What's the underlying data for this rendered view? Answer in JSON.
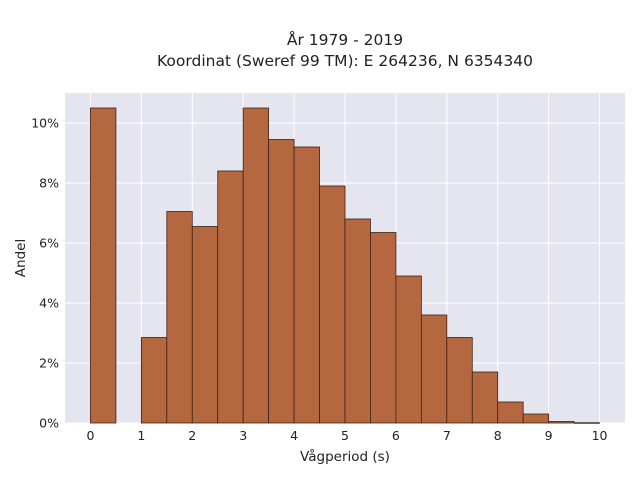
{
  "chart_data": {
    "type": "bar",
    "title": "År 1979 - 2019",
    "subtitle": "Koordinat (Sweref 99 TM): E 264236, N 6354340",
    "xlabel": "Vågperiod (s)",
    "ylabel": "Andel",
    "xlim": [
      -0.5,
      10.5
    ],
    "ylim": [
      0,
      11
    ],
    "x_ticks": [
      0,
      1,
      2,
      3,
      4,
      5,
      6,
      7,
      8,
      9,
      10
    ],
    "y_ticks": [
      0,
      2,
      4,
      6,
      8,
      10
    ],
    "y_tick_format": "percent",
    "bin_width": 0.5,
    "bins": [
      {
        "x": 0.0,
        "value": 10.5
      },
      {
        "x": 0.5,
        "value": 0.0
      },
      {
        "x": 1.0,
        "value": 2.85
      },
      {
        "x": 1.5,
        "value": 7.05
      },
      {
        "x": 2.0,
        "value": 6.55
      },
      {
        "x": 2.5,
        "value": 8.4
      },
      {
        "x": 3.0,
        "value": 10.5
      },
      {
        "x": 3.5,
        "value": 9.45
      },
      {
        "x": 4.0,
        "value": 9.2
      },
      {
        "x": 4.5,
        "value": 7.9
      },
      {
        "x": 5.0,
        "value": 6.8
      },
      {
        "x": 5.5,
        "value": 6.35
      },
      {
        "x": 6.0,
        "value": 4.9
      },
      {
        "x": 6.5,
        "value": 3.6
      },
      {
        "x": 7.0,
        "value": 2.85
      },
      {
        "x": 7.5,
        "value": 1.7
      },
      {
        "x": 8.0,
        "value": 0.7
      },
      {
        "x": 8.5,
        "value": 0.3
      },
      {
        "x": 9.0,
        "value": 0.05
      },
      {
        "x": 9.5,
        "value": 0.01
      }
    ],
    "grid": true,
    "colors": {
      "bar_fill": "#b5683f",
      "bar_stroke": "#3a2418",
      "plot_background": "#e5e5f0",
      "grid": "#ffffff",
      "text": "#222222"
    }
  }
}
